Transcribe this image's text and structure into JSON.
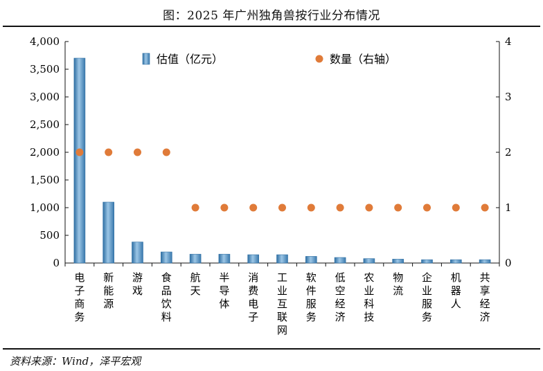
{
  "title": "图：2025 年广州独角兽按行业分布情况",
  "source": "资料来源：Wind，泽平宏观",
  "chart_data": {
    "type": "bar",
    "categories": [
      "电子商务",
      "新能源",
      "游戏",
      "食品饮料",
      "航天",
      "半导体",
      "消费电子",
      "工业互联网",
      "软件服务",
      "低空经济",
      "农业科技",
      "物流",
      "企业服务",
      "机器人",
      "共享经济"
    ],
    "series": [
      {
        "name": "估值（亿元）",
        "axis": "left",
        "kind": "bar",
        "color": "#4f90c4",
        "values": [
          3700,
          1100,
          380,
          200,
          160,
          160,
          150,
          150,
          120,
          100,
          80,
          70,
          60,
          60,
          60
        ]
      },
      {
        "name": "数量（右轴）",
        "axis": "right",
        "kind": "scatter",
        "color": "#e07b39",
        "values": [
          2,
          2,
          2,
          2,
          1,
          1,
          1,
          1,
          1,
          1,
          1,
          1,
          1,
          1,
          1
        ]
      }
    ],
    "left_axis": {
      "ylim": [
        0,
        4000
      ],
      "ticks": [
        0,
        500,
        1000,
        1500,
        2000,
        2500,
        3000,
        3500,
        4000
      ],
      "tick_labels": [
        "0",
        "500",
        "1,000",
        "1,500",
        "2,000",
        "2,500",
        "3,000",
        "3,500",
        "4,000"
      ]
    },
    "right_axis": {
      "ylim": [
        0,
        4
      ],
      "ticks": [
        0,
        1,
        2,
        3,
        4
      ],
      "tick_labels": [
        "0",
        "1",
        "2",
        "3",
        "4"
      ]
    },
    "legend": "top",
    "grid": false
  }
}
